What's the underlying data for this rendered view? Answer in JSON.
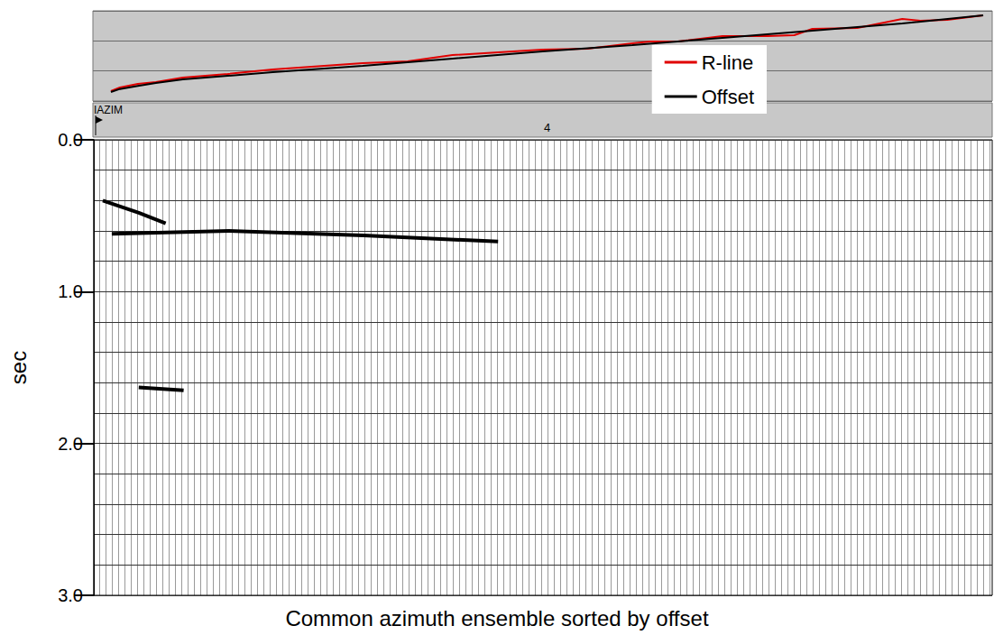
{
  "chart_data": [
    {
      "type": "line",
      "tick_labels": false,
      "grid": true,
      "legend": "right",
      "xlim": [
        0,
        100
      ],
      "ylim": [
        0,
        3
      ],
      "yticks": [
        0,
        1,
        2,
        3
      ],
      "azimuth": {
        "label": "IAZIM",
        "value": 4
      },
      "series": [
        {
          "name": "R-line",
          "color": "#e00000",
          "x": [
            2,
            3,
            5,
            7,
            10,
            15,
            20,
            30,
            35,
            40,
            50,
            55,
            60,
            62,
            65,
            70,
            75,
            78,
            80,
            85,
            90,
            92,
            95,
            99
          ],
          "values": [
            0.33,
            0.45,
            0.57,
            0.63,
            0.78,
            0.9,
            1.05,
            1.26,
            1.32,
            1.53,
            1.71,
            1.74,
            1.92,
            1.98,
            1.98,
            2.16,
            2.16,
            2.19,
            2.4,
            2.43,
            2.73,
            2.67,
            2.7,
            2.85
          ]
        },
        {
          "name": "Offset",
          "color": "#000000",
          "x": [
            2,
            3,
            5,
            7,
            10,
            15,
            20,
            30,
            40,
            50,
            60,
            70,
            80,
            90,
            99
          ],
          "values": [
            0.3,
            0.4,
            0.5,
            0.6,
            0.72,
            0.84,
            0.96,
            1.17,
            1.41,
            1.65,
            1.86,
            2.1,
            2.34,
            2.58,
            2.85
          ]
        }
      ]
    },
    {
      "type": "seismic",
      "title": "Common azimuth ensemble sorted by offset",
      "y_label": "sec",
      "tick_labels": "y",
      "grid": true,
      "color": "#000000",
      "xlim": [
        0,
        100
      ],
      "ylim": [
        0,
        3
      ],
      "yticks": [
        {
          "value": 0,
          "label": "0.0"
        },
        {
          "value": 1,
          "label": "1.0"
        },
        {
          "value": 2,
          "label": "2.0"
        },
        {
          "value": 3,
          "label": "3.0"
        }
      ],
      "events": [
        {
          "x": [
            1,
            5,
            8
          ],
          "values": [
            0.4,
            0.48,
            0.55
          ]
        },
        {
          "x": [
            2,
            15,
            30,
            45
          ],
          "values": [
            0.62,
            0.6,
            0.63,
            0.67
          ]
        },
        {
          "x": [
            5,
            10
          ],
          "values": [
            1.63,
            1.65
          ]
        }
      ]
    }
  ]
}
